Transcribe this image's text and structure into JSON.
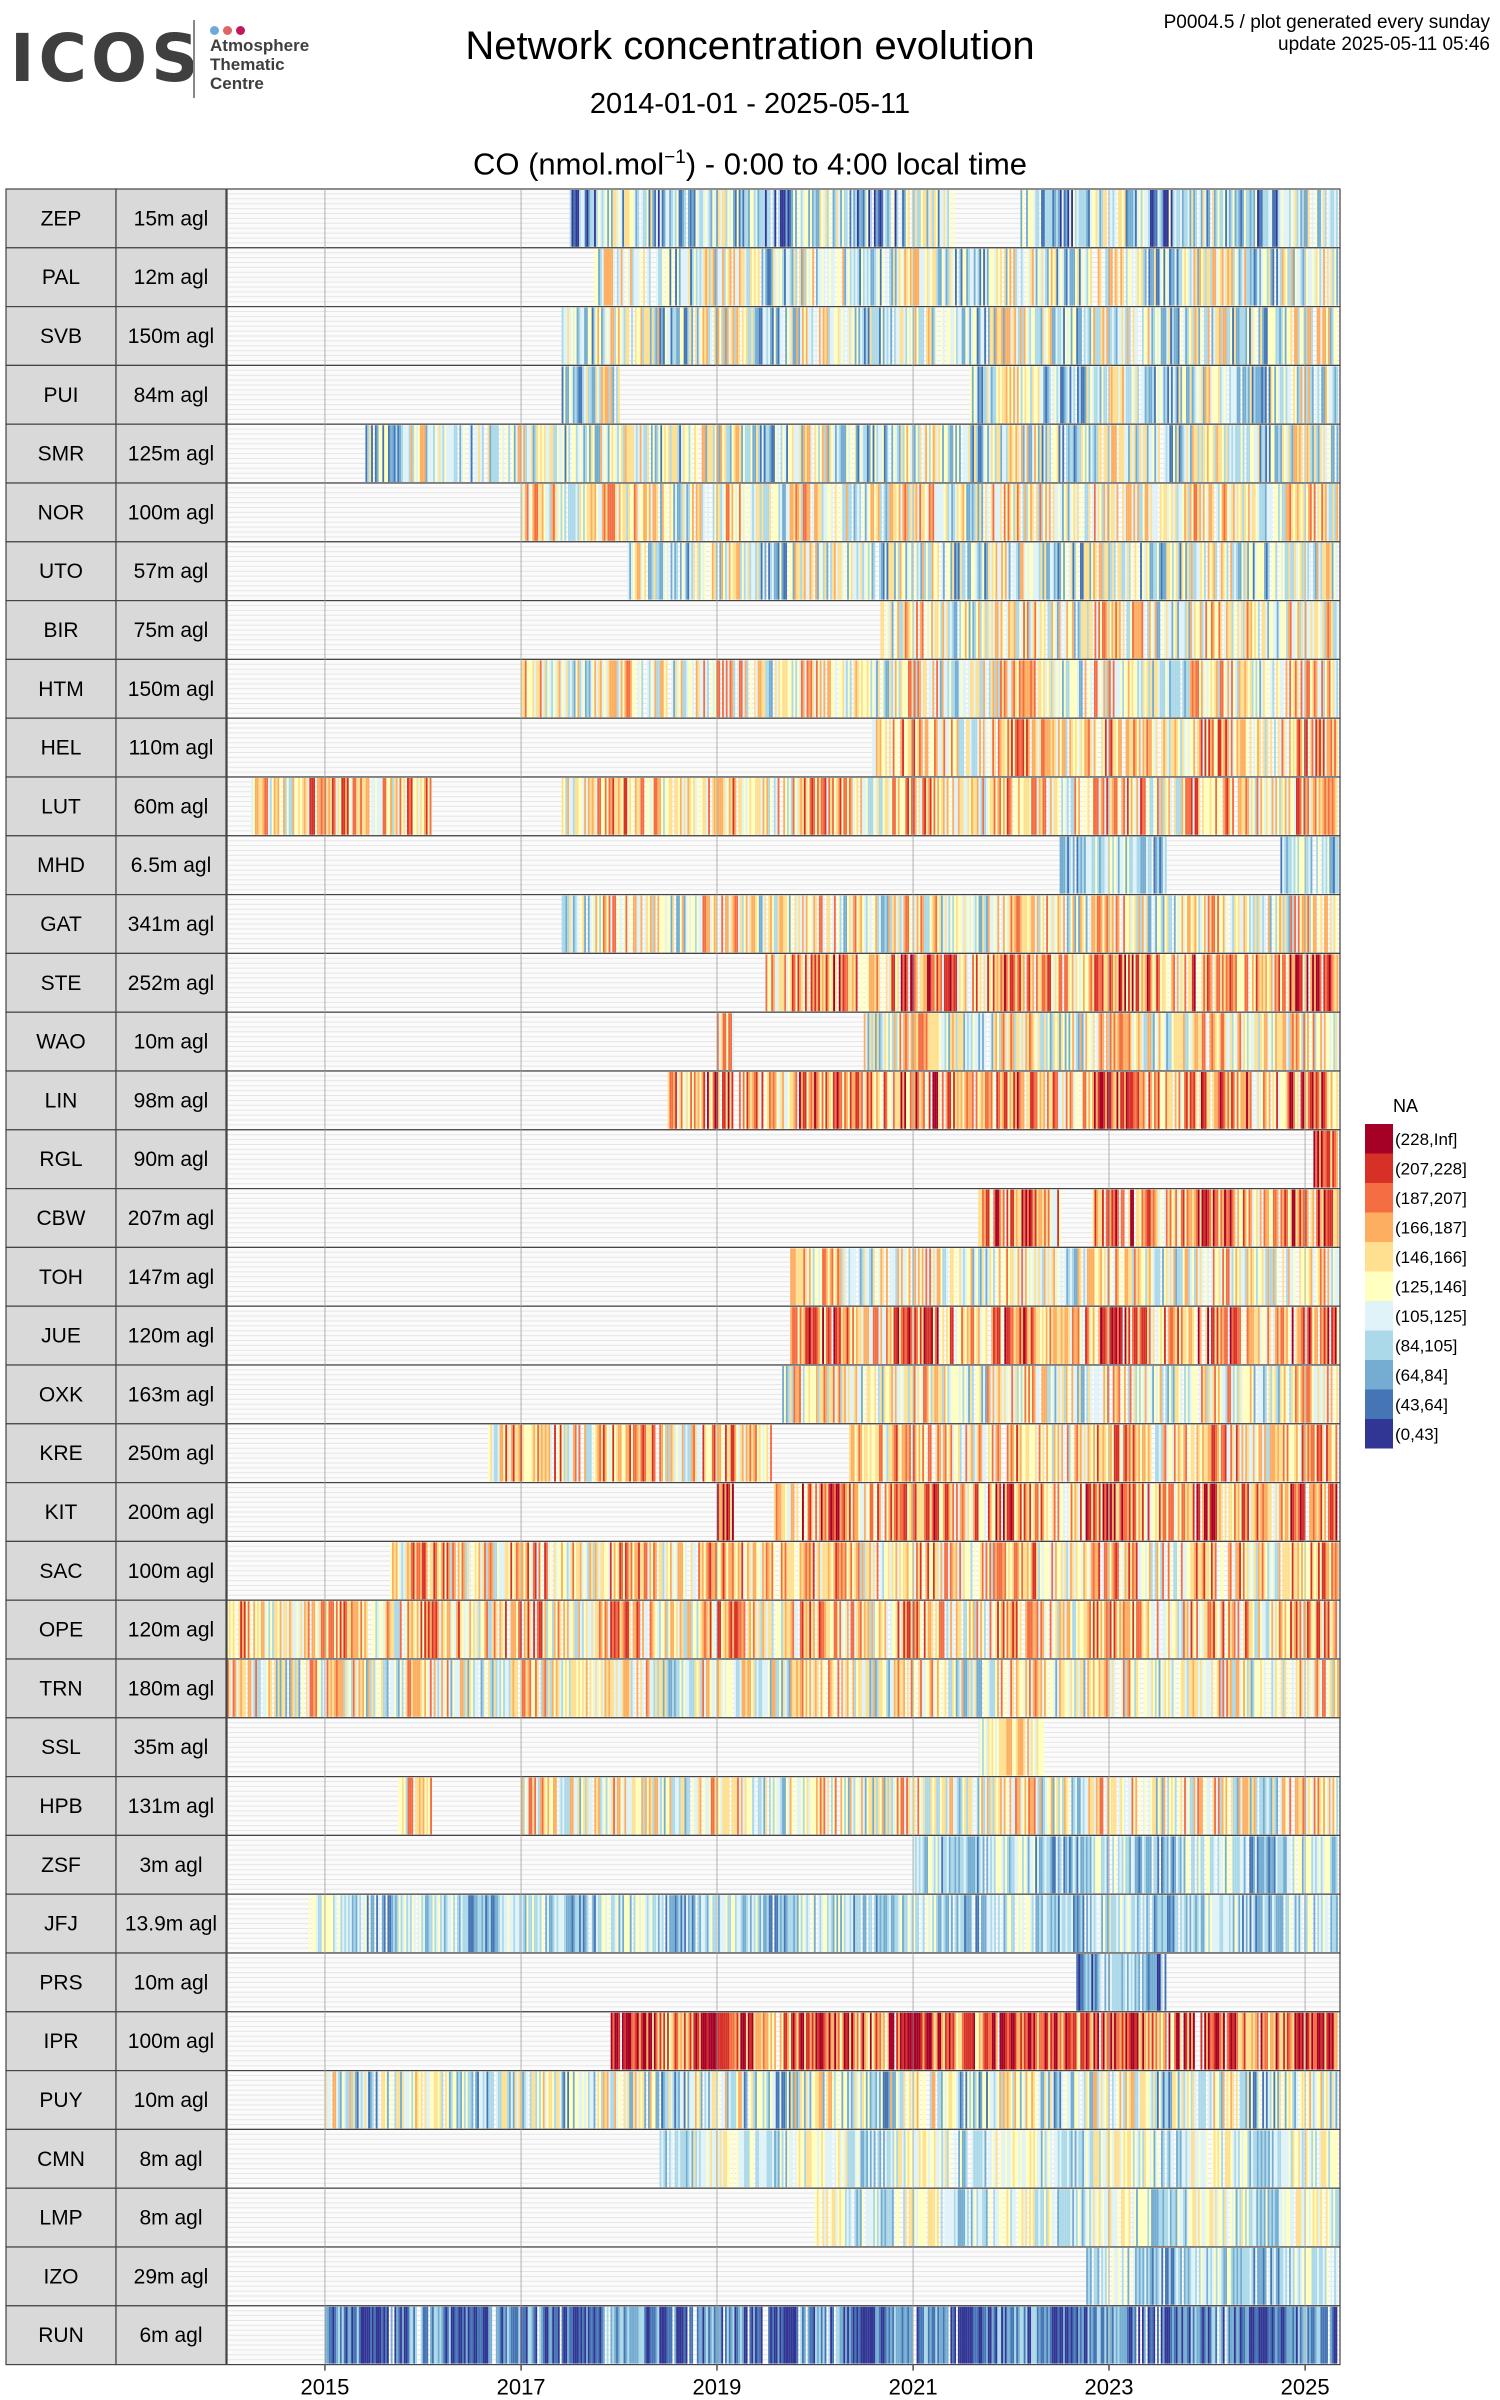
{
  "header": {
    "logo_text": "ICOS",
    "logo_sub": [
      "Atmosphere",
      "Thematic",
      "Centre"
    ],
    "logo_dot_colors": [
      "#6fa8dc",
      "#e06666",
      "#c2185b"
    ],
    "title": "Network concentration evolution",
    "date_range": "2014-01-01 - 2025-05-11",
    "subtitle_pre": "CO (nmol.mol",
    "subtitle_sup": "−1",
    "subtitle_post": ") - 0:00 to 4:00 local time",
    "meta_line1": "P0004.5 / plot generated every sunday",
    "meta_line2": "update  2025-05-11 05:46"
  },
  "chart_data": {
    "type": "heatmap",
    "title": "Network concentration evolution",
    "x_range": [
      "2014-01-01",
      "2025-05-11"
    ],
    "x_ticks": [
      "2015",
      "2017",
      "2019",
      "2021",
      "2023",
      "2025"
    ],
    "grid": true,
    "legend_position": "right",
    "legend": {
      "na_label": "NA",
      "bins": [
        {
          "label": "(228,Inf]",
          "color": "#A50026"
        },
        {
          "label": "(207,228]",
          "color": "#D73027"
        },
        {
          "label": "(187,207]",
          "color": "#F46D43"
        },
        {
          "label": "(166,187]",
          "color": "#FDAE61"
        },
        {
          "label": "(146,166]",
          "color": "#FEE090"
        },
        {
          "label": "(125,146]",
          "color": "#FFFFBF"
        },
        {
          "label": "(105,125]",
          "color": "#E0F3F8"
        },
        {
          "label": "(84,105]",
          "color": "#ABD9E9"
        },
        {
          "label": "(64,84]",
          "color": "#74ADD1"
        },
        {
          "label": "(43,64]",
          "color": "#4575B4"
        },
        {
          "label": "(0,43]",
          "color": "#313695"
        }
      ]
    },
    "stations": [
      {
        "code": "ZEP",
        "height": "15m agl",
        "periods": [
          [
            "2017-07",
            "2025-05"
          ]
        ],
        "gaps": [
          [
            "2021-06",
            "2022-02"
          ]
        ],
        "mean_bin": 7,
        "spread": 2
      },
      {
        "code": "PAL",
        "height": "12m agl",
        "periods": [
          [
            "2017-10",
            "2025-05"
          ]
        ],
        "gaps": [],
        "mean_bin": 6,
        "spread": 2
      },
      {
        "code": "SVB",
        "height": "150m agl",
        "periods": [
          [
            "2017-06",
            "2025-05"
          ]
        ],
        "gaps": [],
        "mean_bin": 6,
        "spread": 2
      },
      {
        "code": "PUI",
        "height": "84m agl",
        "periods": [
          [
            "2017-06",
            "2018-01"
          ],
          [
            "2021-08",
            "2025-05"
          ]
        ],
        "gaps": [],
        "mean_bin": 6,
        "spread": 2
      },
      {
        "code": "SMR",
        "height": "125m agl",
        "periods": [
          [
            "2015-06",
            "2025-05"
          ]
        ],
        "gaps": [],
        "mean_bin": 6,
        "spread": 2
      },
      {
        "code": "NOR",
        "height": "100m agl",
        "periods": [
          [
            "2017-01",
            "2025-05"
          ]
        ],
        "gaps": [],
        "mean_bin": 5,
        "spread": 2
      },
      {
        "code": "UTO",
        "height": "57m agl",
        "periods": [
          [
            "2018-02",
            "2025-05"
          ]
        ],
        "gaps": [],
        "mean_bin": 6,
        "spread": 2
      },
      {
        "code": "BIR",
        "height": "75m agl",
        "periods": [
          [
            "2020-09",
            "2025-05"
          ]
        ],
        "gaps": [],
        "mean_bin": 5,
        "spread": 2
      },
      {
        "code": "HTM",
        "height": "150m agl",
        "periods": [
          [
            "2017-01",
            "2025-05"
          ]
        ],
        "gaps": [],
        "mean_bin": 5,
        "spread": 2
      },
      {
        "code": "HEL",
        "height": "110m agl",
        "periods": [
          [
            "2020-08",
            "2025-05"
          ]
        ],
        "gaps": [],
        "mean_bin": 4,
        "spread": 2
      },
      {
        "code": "LUT",
        "height": "60m agl",
        "periods": [
          [
            "2014-04",
            "2016-02"
          ],
          [
            "2017-06",
            "2025-05"
          ]
        ],
        "gaps": [],
        "mean_bin": 4,
        "spread": 2
      },
      {
        "code": "MHD",
        "height": "6.5m agl",
        "periods": [
          [
            "2022-07",
            "2023-08"
          ],
          [
            "2024-10",
            "2025-05"
          ]
        ],
        "gaps": [],
        "mean_bin": 7,
        "spread": 1
      },
      {
        "code": "GAT",
        "height": "341m agl",
        "periods": [
          [
            "2017-06",
            "2025-05"
          ]
        ],
        "gaps": [],
        "mean_bin": 5,
        "spread": 2
      },
      {
        "code": "STE",
        "height": "252m agl",
        "periods": [
          [
            "2019-07",
            "2025-05"
          ]
        ],
        "gaps": [],
        "mean_bin": 3,
        "spread": 2
      },
      {
        "code": "WAO",
        "height": "10m agl",
        "periods": [
          [
            "2019-01",
            "2019-03"
          ],
          [
            "2020-07",
            "2025-05"
          ]
        ],
        "gaps": [],
        "mean_bin": 5,
        "spread": 2
      },
      {
        "code": "LIN",
        "height": "98m agl",
        "periods": [
          [
            "2018-07",
            "2025-05"
          ]
        ],
        "gaps": [],
        "mean_bin": 3,
        "spread": 2
      },
      {
        "code": "RGL",
        "height": "90m agl",
        "periods": [
          [
            "2025-02",
            "2025-05"
          ]
        ],
        "gaps": [],
        "mean_bin": 2,
        "spread": 1
      },
      {
        "code": "CBW",
        "height": "207m agl",
        "periods": [
          [
            "2021-09",
            "2022-07"
          ],
          [
            "2022-11",
            "2025-05"
          ]
        ],
        "gaps": [],
        "mean_bin": 3,
        "spread": 2
      },
      {
        "code": "TOH",
        "height": "147m agl",
        "periods": [
          [
            "2019-10",
            "2025-05"
          ]
        ],
        "gaps": [],
        "mean_bin": 5,
        "spread": 2
      },
      {
        "code": "JUE",
        "height": "120m agl",
        "periods": [
          [
            "2019-10",
            "2025-05"
          ]
        ],
        "gaps": [],
        "mean_bin": 3,
        "spread": 2
      },
      {
        "code": "OXK",
        "height": "163m agl",
        "periods": [
          [
            "2019-09",
            "2025-05"
          ]
        ],
        "gaps": [],
        "mean_bin": 5,
        "spread": 2
      },
      {
        "code": "KRE",
        "height": "250m agl",
        "periods": [
          [
            "2016-09",
            "2025-05"
          ]
        ],
        "gaps": [
          [
            "2019-08",
            "2020-05"
          ]
        ],
        "mean_bin": 4,
        "spread": 2
      },
      {
        "code": "KIT",
        "height": "200m agl",
        "periods": [
          [
            "2019-01",
            "2019-03"
          ],
          [
            "2019-08",
            "2025-05"
          ]
        ],
        "gaps": [],
        "mean_bin": 3,
        "spread": 2
      },
      {
        "code": "SAC",
        "height": "100m agl",
        "periods": [
          [
            "2015-09",
            "2025-05"
          ]
        ],
        "gaps": [],
        "mean_bin": 4,
        "spread": 2
      },
      {
        "code": "OPE",
        "height": "120m agl",
        "periods": [
          [
            "2014-01",
            "2025-05"
          ]
        ],
        "gaps": [],
        "mean_bin": 4,
        "spread": 2
      },
      {
        "code": "TRN",
        "height": "180m agl",
        "periods": [
          [
            "2014-01",
            "2025-05"
          ]
        ],
        "gaps": [],
        "mean_bin": 5,
        "spread": 2
      },
      {
        "code": "SSL",
        "height": "35m agl",
        "periods": [
          [
            "2021-09",
            "2022-05"
          ]
        ],
        "gaps": [],
        "mean_bin": 5,
        "spread": 1
      },
      {
        "code": "HPB",
        "height": "131m agl",
        "periods": [
          [
            "2015-10",
            "2016-02"
          ],
          [
            "2017-01",
            "2025-05"
          ]
        ],
        "gaps": [],
        "mean_bin": 5,
        "spread": 2
      },
      {
        "code": "ZSF",
        "height": "3m agl",
        "periods": [
          [
            "2021-01",
            "2025-05"
          ]
        ],
        "gaps": [],
        "mean_bin": 7,
        "spread": 1
      },
      {
        "code": "JFJ",
        "height": "13.9m agl",
        "periods": [
          [
            "2014-11",
            "2025-05"
          ]
        ],
        "gaps": [],
        "mean_bin": 7,
        "spread": 1
      },
      {
        "code": "PRS",
        "height": "10m agl",
        "periods": [
          [
            "2022-09",
            "2023-08"
          ]
        ],
        "gaps": [],
        "mean_bin": 8,
        "spread": 1
      },
      {
        "code": "IPR",
        "height": "100m agl",
        "periods": [
          [
            "2017-12",
            "2025-05"
          ]
        ],
        "gaps": [],
        "mean_bin": 2,
        "spread": 2
      },
      {
        "code": "PUY",
        "height": "10m agl",
        "periods": [
          [
            "2015-01",
            "2025-05"
          ]
        ],
        "gaps": [],
        "mean_bin": 6,
        "spread": 2
      },
      {
        "code": "CMN",
        "height": "8m agl",
        "periods": [
          [
            "2018-06",
            "2025-05"
          ]
        ],
        "gaps": [],
        "mean_bin": 6,
        "spread": 1
      },
      {
        "code": "LMP",
        "height": "8m agl",
        "periods": [
          [
            "2020-01",
            "2025-05"
          ]
        ],
        "gaps": [],
        "mean_bin": 6,
        "spread": 1
      },
      {
        "code": "IZO",
        "height": "29m agl",
        "periods": [
          [
            "2022-10",
            "2025-05"
          ]
        ],
        "gaps": [],
        "mean_bin": 7,
        "spread": 1
      },
      {
        "code": "RUN",
        "height": "6m agl",
        "periods": [
          [
            "2015-01",
            "2025-05"
          ]
        ],
        "gaps": [],
        "mean_bin": 9,
        "spread": 1
      }
    ]
  }
}
